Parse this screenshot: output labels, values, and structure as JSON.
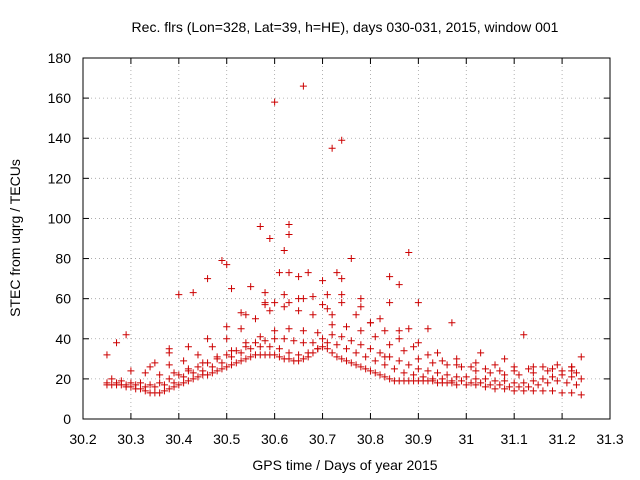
{
  "chart_data": {
    "type": "scatter",
    "title": "Rec. flrs (Lon=328, Lat=39, h=HE), days 030-031, 2015, window 001",
    "xlabel": "GPS time / Days of year 2015",
    "ylabel": "STEC from uqrg / TECUs",
    "xlim": [
      30.2,
      31.3
    ],
    "ylim": [
      0,
      180
    ],
    "x_ticks": [
      "30.2",
      "30.3",
      "30.4",
      "30.5",
      "30.6",
      "30.7",
      "30.8",
      "30.9",
      "31",
      "31.1",
      "31.2",
      "31.3"
    ],
    "y_ticks": [
      "0",
      "20",
      "40",
      "60",
      "80",
      "100",
      "120",
      "140",
      "160",
      "180"
    ],
    "grid": true,
    "marker": "plus",
    "color": "#cc0000",
    "series": [
      {
        "x": [
          30.25,
          30.26,
          30.27,
          30.28,
          30.29,
          30.3,
          30.31,
          30.32,
          30.33,
          30.34,
          30.35,
          30.36,
          30.37,
          30.38,
          30.39,
          30.4,
          30.41,
          30.42,
          30.43,
          30.44,
          30.45,
          30.46,
          30.47,
          30.48,
          30.49,
          30.5,
          30.51,
          30.52,
          30.53,
          30.54,
          30.55,
          30.56,
          30.57,
          30.58,
          30.59,
          30.6,
          30.61,
          30.62,
          30.63,
          30.64,
          30.65,
          30.66,
          30.67,
          30.68,
          30.69,
          30.7,
          30.71,
          30.72,
          30.73,
          30.74,
          30.75,
          30.76,
          30.77,
          30.78,
          30.79,
          30.8,
          30.81,
          30.82,
          30.83,
          30.84,
          30.85,
          30.86,
          30.87,
          30.88,
          30.89,
          30.9,
          30.91,
          30.92,
          30.93,
          30.94,
          30.95,
          30.96,
          30.97,
          30.98,
          31.0,
          31.02,
          31.04,
          31.06,
          31.08,
          31.1,
          31.12,
          31.14,
          31.16,
          31.18,
          31.2,
          31.22,
          31.24,
          30.25,
          30.27,
          30.29,
          30.31,
          30.33,
          30.35,
          30.37,
          30.39,
          30.41,
          30.43,
          30.45,
          30.47,
          30.49,
          30.51,
          30.53,
          30.55,
          30.57,
          30.59,
          30.61,
          30.63,
          30.65,
          30.67,
          30.69,
          30.71,
          30.73,
          30.75,
          30.77,
          30.79,
          30.81,
          30.83,
          30.85,
          30.87,
          30.89,
          30.91,
          30.93,
          30.95,
          30.97,
          30.99,
          31.01,
          31.03,
          31.05,
          31.07,
          31.09,
          31.11,
          31.13,
          31.15,
          31.17,
          31.19,
          31.21,
          31.23,
          30.26,
          30.28,
          30.3,
          30.32,
          30.34,
          30.36,
          30.38,
          30.4,
          30.42,
          30.44,
          30.46,
          30.48,
          30.5,
          30.52,
          30.54,
          30.56,
          30.58,
          30.6,
          30.62,
          30.64,
          30.66,
          30.68,
          30.7,
          30.72,
          30.74,
          30.76,
          30.78,
          30.8,
          30.82,
          30.84,
          30.86,
          30.88,
          30.9,
          30.92,
          30.94,
          30.96,
          30.98,
          31.0,
          31.02,
          31.04,
          31.06,
          31.08,
          31.1,
          31.12,
          31.14,
          31.16,
          31.18,
          31.2,
          31.22,
          31.24,
          30.3,
          30.33,
          30.36,
          30.39,
          30.42,
          30.45,
          30.48,
          30.51,
          30.54,
          30.57,
          30.6,
          30.63,
          30.66,
          30.69,
          30.72,
          30.75,
          30.78,
          30.81,
          30.84,
          30.87,
          30.9,
          30.93,
          30.96,
          30.99,
          31.02,
          31.05,
          31.08,
          31.11,
          31.14,
          31.17,
          31.2,
          31.23,
          30.35,
          30.38,
          30.41,
          30.44,
          30.47,
          30.5,
          30.53,
          30.56,
          30.59,
          30.62,
          30.65,
          30.68,
          30.71,
          30.74,
          30.77,
          30.8,
          30.83,
          30.86,
          30.89,
          30.92,
          30.95,
          30.98,
          31.01,
          31.04,
          31.07,
          31.1,
          31.13,
          31.16,
          31.19,
          31.22,
          30.38,
          30.42,
          30.46,
          30.5,
          30.54,
          30.58,
          30.62,
          30.66,
          30.7,
          30.74,
          30.78,
          30.82,
          30.86,
          30.9,
          30.94,
          30.98,
          31.02,
          31.06,
          31.1,
          31.14,
          31.18,
          31.22,
          30.25,
          30.27,
          30.29,
          30.34,
          30.38,
          30.4,
          30.43,
          30.46,
          30.49,
          30.5,
          30.51,
          30.53,
          30.55,
          30.57,
          30.58,
          30.59,
          30.6,
          30.61,
          30.62,
          30.63,
          30.63,
          30.63,
          30.65,
          30.66,
          30.67,
          30.68,
          30.7,
          30.72,
          30.72,
          30.73,
          30.74,
          30.76,
          30.78,
          30.8,
          30.83,
          30.84,
          30.86,
          30.88,
          30.9,
          30.92,
          30.97,
          31.03,
          31.08,
          31.12,
          31.22,
          31.24,
          30.6,
          30.65,
          30.71,
          30.74,
          30.84,
          30.58,
          30.63,
          30.88
        ],
        "y": [
          17,
          17,
          17,
          17,
          16,
          16,
          15,
          15,
          14,
          13,
          13,
          13,
          14,
          15,
          16,
          17,
          18,
          19,
          20,
          21,
          22,
          22,
          23,
          24,
          25,
          26,
          27,
          28,
          29,
          30,
          31,
          32,
          32,
          32,
          32,
          32,
          31,
          30,
          30,
          29,
          29,
          30,
          31,
          33,
          35,
          36,
          35,
          33,
          31,
          30,
          29,
          28,
          27,
          26,
          25,
          24,
          23,
          22,
          21,
          20,
          19,
          19,
          19,
          19,
          19,
          19,
          19,
          19,
          19,
          18,
          18,
          18,
          18,
          17,
          17,
          17,
          16,
          15,
          15,
          14,
          14,
          14,
          14,
          14,
          13,
          13,
          12,
          18,
          18,
          17,
          17,
          16,
          16,
          17,
          18,
          21,
          23,
          24,
          26,
          28,
          31,
          33,
          35,
          36,
          36,
          35,
          33,
          32,
          33,
          35,
          38,
          37,
          35,
          33,
          31,
          29,
          27,
          25,
          23,
          22,
          21,
          20,
          20,
          19,
          19,
          18,
          18,
          17,
          17,
          16,
          16,
          16,
          17,
          18,
          19,
          18,
          17,
          20,
          19,
          18,
          18,
          17,
          18,
          20,
          22,
          24,
          26,
          28,
          30,
          32,
          34,
          36,
          38,
          39,
          40,
          40,
          39,
          38,
          38,
          40,
          42,
          41,
          39,
          37,
          35,
          33,
          31,
          29,
          27,
          25,
          24,
          23,
          22,
          21,
          21,
          20,
          20,
          19,
          19,
          18,
          18,
          19,
          20,
          21,
          22,
          21,
          20,
          24,
          23,
          22,
          23,
          25,
          28,
          31,
          34,
          38,
          41,
          44,
          45,
          44,
          43,
          47,
          46,
          44,
          41,
          37,
          34,
          30,
          28,
          27,
          26,
          24,
          23,
          22,
          22,
          23,
          24,
          24,
          23,
          28,
          27,
          29,
          32,
          36,
          40,
          45,
          50,
          54,
          56,
          54,
          52,
          55,
          58,
          52,
          48,
          44,
          40,
          36,
          32,
          29,
          27,
          26,
          25,
          24,
          24,
          25,
          26,
          27,
          26,
          33,
          36,
          40,
          46,
          52,
          58,
          62,
          60,
          57,
          62,
          56,
          50,
          44,
          38,
          33,
          30,
          28,
          27,
          26,
          26,
          25,
          24,
          32,
          38,
          42,
          26,
          35,
          62,
          63,
          70,
          79,
          77,
          65,
          53,
          66,
          96,
          63,
          90,
          158,
          73,
          84,
          73,
          92,
          97,
          71,
          166,
          73,
          61,
          69,
          52,
          135,
          73,
          139,
          80,
          60,
          48,
          31,
          71,
          67,
          83,
          58,
          45,
          48,
          33,
          30,
          42,
          26,
          31,
          58,
          60,
          62,
          70,
          58,
          57,
          58,
          45
        ],
        "name": ""
      }
    ]
  }
}
